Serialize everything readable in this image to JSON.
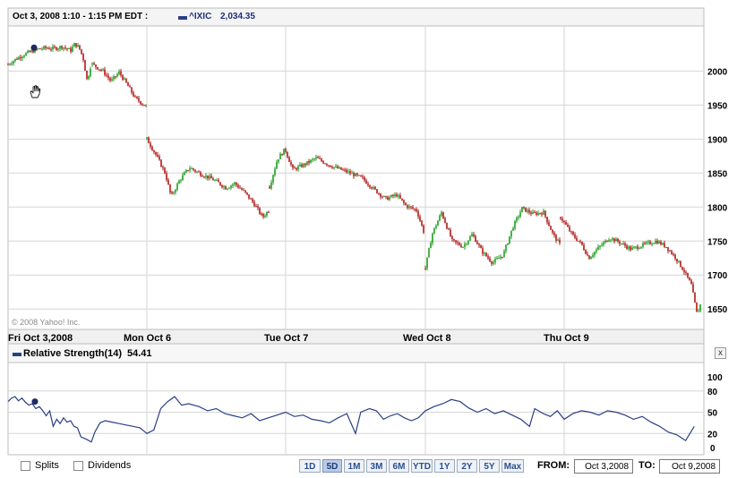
{
  "header": {
    "date_range_label": "Oct 3, 2008 1:10 - 1:15 PM EDT :",
    "symbol_label": "^IXIC",
    "symbol_value": "2,034.35"
  },
  "copyright": "© 2008 Yahoo! Inc.",
  "x_axis_labels": [
    "Fri Oct 3,2008",
    "Mon Oct 6",
    "Tue Oct 7",
    "Wed Oct 8",
    "Thu Oct 9"
  ],
  "rsi": {
    "label": "Relative Strength(14)",
    "value": "54.41",
    "close_glyph": "x"
  },
  "footer": {
    "splits_label": "Splits",
    "dividends_label": "Dividends",
    "periods": [
      "1D",
      "5D",
      "1M",
      "3M",
      "6M",
      "YTD",
      "1Y",
      "2Y",
      "5Y",
      "Max"
    ],
    "active_period": "5D",
    "from_label": "FROM:",
    "from_value": "Oct 3,2008",
    "to_label": "TO:",
    "to_value": "Oct 9,2008"
  },
  "colors": {
    "up": "#1f9d1f",
    "down": "#b01818",
    "rsi_line": "#2b3f86",
    "grid": "#d6d6d6"
  },
  "chart_data": [
    {
      "type": "candlestick",
      "title": "",
      "y_ticks": [
        1650,
        1700,
        1750,
        1800,
        1850,
        1900,
        1950,
        2000
      ],
      "ylim": [
        1620,
        2065
      ],
      "grid": true,
      "days": [
        {
          "label": "Fri Oct 3,2008",
          "close_path": [
            [
              0,
              2010
            ],
            [
              0.1,
              2018
            ],
            [
              0.2,
              2025
            ],
            [
              0.35,
              2032
            ],
            [
              0.45,
              2034
            ],
            [
              0.55,
              2033
            ],
            [
              0.65,
              2036
            ],
            [
              0.75,
              2030
            ],
            [
              0.8,
              2040
            ],
            [
              0.85,
              2035
            ],
            [
              0.9,
              2020
            ],
            [
              0.95,
              1985
            ],
            [
              1.0,
              2012
            ]
          ]
        },
        {
          "label": "",
          "close_path": [
            [
              0,
              2010
            ],
            [
              0.2,
              2000
            ],
            [
              0.35,
              1985
            ],
            [
              0.5,
              1998
            ],
            [
              0.65,
              1980
            ],
            [
              0.8,
              1960
            ],
            [
              1.0,
              1948
            ]
          ]
        },
        {
          "label": "Mon Oct 6",
          "close_path": [
            [
              0,
              1900
            ],
            [
              0.08,
              1875
            ],
            [
              0.15,
              1850
            ],
            [
              0.2,
              1815
            ],
            [
              0.27,
              1840
            ],
            [
              0.35,
              1858
            ],
            [
              0.45,
              1848
            ],
            [
              0.55,
              1840
            ],
            [
              0.65,
              1828
            ],
            [
              0.72,
              1835
            ],
            [
              0.8,
              1822
            ],
            [
              0.88,
              1805
            ],
            [
              0.95,
              1785
            ],
            [
              1.0,
              1795
            ]
          ]
        },
        {
          "label": "Tue Oct 7",
          "close_path": [
            [
              0,
              1830
            ],
            [
              0.05,
              1870
            ],
            [
              0.1,
              1885
            ],
            [
              0.15,
              1855
            ],
            [
              0.22,
              1862
            ],
            [
              0.3,
              1872
            ],
            [
              0.4,
              1860
            ],
            [
              0.5,
              1852
            ],
            [
              0.6,
              1842
            ],
            [
              0.68,
              1825
            ],
            [
              0.75,
              1812
            ],
            [
              0.82,
              1818
            ],
            [
              0.88,
              1802
            ],
            [
              0.95,
              1795
            ],
            [
              1.0,
              1760
            ]
          ]
        },
        {
          "label": "Wed Oct 8",
          "close_path": [
            [
              0,
              1710
            ],
            [
              0.05,
              1760
            ],
            [
              0.12,
              1792
            ],
            [
              0.2,
              1750
            ],
            [
              0.28,
              1742
            ],
            [
              0.35,
              1760
            ],
            [
              0.42,
              1735
            ],
            [
              0.5,
              1718
            ],
            [
              0.58,
              1730
            ],
            [
              0.65,
              1770
            ],
            [
              0.72,
              1798
            ],
            [
              0.8,
              1790
            ],
            [
              0.88,
              1792
            ],
            [
              0.95,
              1760
            ],
            [
              1.0,
              1745
            ]
          ]
        },
        {
          "label": "Thu Oct 9",
          "close_path": [
            [
              0,
              1785
            ],
            [
              0.08,
              1760
            ],
            [
              0.15,
              1745
            ],
            [
              0.2,
              1725
            ],
            [
              0.28,
              1742
            ],
            [
              0.35,
              1755
            ],
            [
              0.42,
              1748
            ],
            [
              0.5,
              1738
            ],
            [
              0.6,
              1745
            ],
            [
              0.68,
              1750
            ],
            [
              0.75,
              1742
            ],
            [
              0.82,
              1725
            ],
            [
              0.88,
              1705
            ],
            [
              0.93,
              1685
            ],
            [
              0.97,
              1642
            ],
            [
              1.0,
              1660
            ]
          ]
        }
      ]
    },
    {
      "type": "line",
      "title": "Relative Strength(14)",
      "y_ticks": [
        0,
        20,
        50,
        80,
        100
      ],
      "ylim": [
        -10,
        110
      ],
      "grid": true,
      "series": [
        {
          "name": "Relative Strength(14)",
          "points": [
            [
              0,
              65
            ],
            [
              0.02,
              70
            ],
            [
              0.04,
              72
            ],
            [
              0.06,
              66
            ],
            [
              0.08,
              70
            ],
            [
              0.1,
              64
            ],
            [
              0.12,
              60
            ],
            [
              0.14,
              62
            ],
            [
              0.16,
              55
            ],
            [
              0.18,
              58
            ],
            [
              0.2,
              52
            ],
            [
              0.22,
              45
            ],
            [
              0.24,
              52
            ],
            [
              0.26,
              30
            ],
            [
              0.28,
              40
            ],
            [
              0.3,
              34
            ],
            [
              0.32,
              42
            ],
            [
              0.34,
              36
            ],
            [
              0.36,
              38
            ],
            [
              0.38,
              30
            ],
            [
              0.4,
              28
            ],
            [
              0.42,
              15
            ],
            [
              0.45,
              12
            ],
            [
              0.48,
              8
            ],
            [
              0.5,
              22
            ],
            [
              0.53,
              35
            ],
            [
              0.56,
              38
            ],
            [
              0.6,
              36
            ],
            [
              0.64,
              34
            ],
            [
              0.68,
              32
            ],
            [
              0.72,
              30
            ],
            [
              0.76,
              28
            ],
            [
              0.8,
              20
            ],
            [
              0.84,
              25
            ],
            [
              0.88,
              55
            ],
            [
              0.92,
              65
            ],
            [
              0.96,
              72
            ],
            [
              1.0,
              60
            ],
            [
              1.04,
              62
            ],
            [
              1.1,
              58
            ],
            [
              1.15,
              52
            ],
            [
              1.2,
              55
            ],
            [
              1.25,
              48
            ],
            [
              1.3,
              45
            ],
            [
              1.35,
              42
            ],
            [
              1.4,
              48
            ],
            [
              1.45,
              38
            ],
            [
              1.5,
              42
            ],
            [
              1.55,
              46
            ],
            [
              1.6,
              50
            ],
            [
              1.65,
              44
            ],
            [
              1.7,
              46
            ],
            [
              1.75,
              40
            ],
            [
              1.8,
              38
            ],
            [
              1.85,
              35
            ],
            [
              1.9,
              42
            ],
            [
              1.95,
              48
            ],
            [
              2.0,
              20
            ],
            [
              2.03,
              50
            ],
            [
              2.08,
              55
            ],
            [
              2.12,
              52
            ],
            [
              2.16,
              40
            ],
            [
              2.2,
              45
            ],
            [
              2.24,
              48
            ],
            [
              2.28,
              42
            ],
            [
              2.32,
              38
            ],
            [
              2.36,
              42
            ],
            [
              2.4,
              52
            ],
            [
              2.45,
              58
            ],
            [
              2.5,
              62
            ],
            [
              2.55,
              68
            ],
            [
              2.6,
              65
            ],
            [
              2.65,
              56
            ],
            [
              2.7,
              50
            ],
            [
              2.75,
              55
            ],
            [
              2.8,
              48
            ],
            [
              2.85,
              52
            ],
            [
              2.9,
              46
            ],
            [
              2.95,
              40
            ],
            [
              3.0,
              30
            ],
            [
              3.03,
              55
            ],
            [
              3.08,
              48
            ],
            [
              3.12,
              44
            ],
            [
              3.16,
              52
            ],
            [
              3.2,
              40
            ],
            [
              3.25,
              48
            ],
            [
              3.3,
              52
            ],
            [
              3.35,
              50
            ],
            [
              3.4,
              46
            ],
            [
              3.45,
              52
            ],
            [
              3.5,
              50
            ],
            [
              3.55,
              46
            ],
            [
              3.6,
              40
            ],
            [
              3.65,
              44
            ],
            [
              3.7,
              36
            ],
            [
              3.75,
              30
            ],
            [
              3.8,
              22
            ],
            [
              3.85,
              18
            ],
            [
              3.9,
              10
            ],
            [
              3.95,
              30
            ]
          ]
        }
      ]
    }
  ]
}
